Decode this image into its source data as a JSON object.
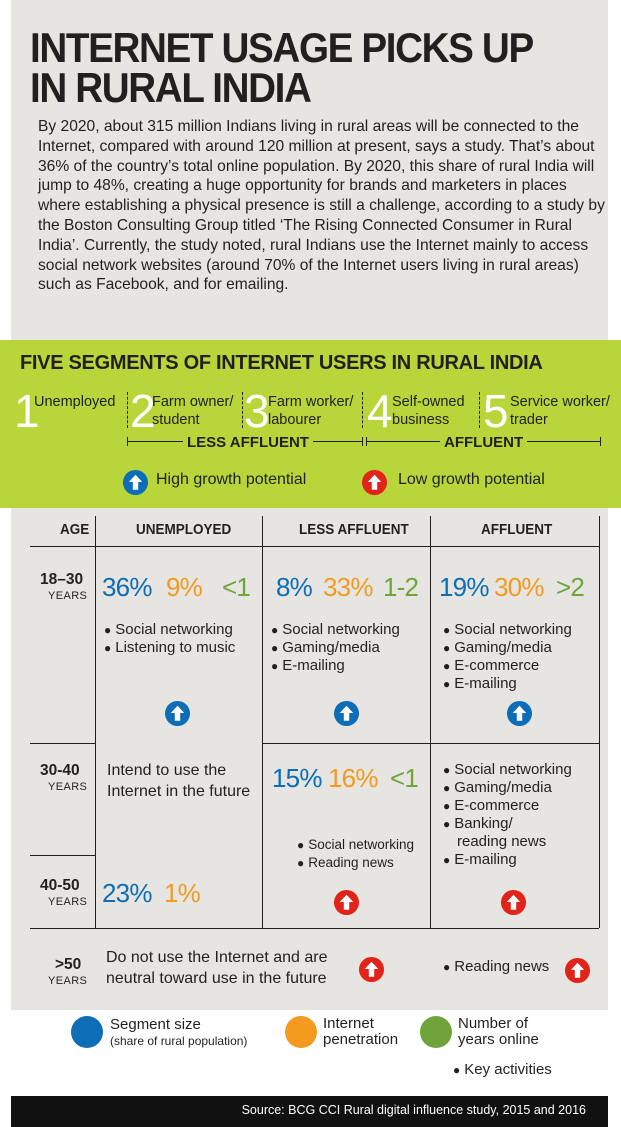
{
  "title_line1": "INTERNET USAGE PICKS UP",
  "title_line2": "IN RURAL INDIA",
  "intro": "By 2020, about 315 million Indians living in rural areas will be connected to the Internet, compared with around 120 million at present, says a study. That’s about 36% of the country’s total online population. By 2020, this share of rural India will jump to 48%, creating a huge opportunity for brands and marketers in places where establishing a physical presence is still a challenge, according to a study by the Boston Consulting Group titled ‘The Rising Connected Consumer in Rural India’. Currently, the study noted, rural Indians use the Internet mainly to access social network websites (around 70% of the Internet users living in rural areas) such as Facebook, and for emailing.",
  "segments": {
    "title": "FIVE SEGMENTS OF INTERNET USERS IN RURAL INDIA",
    "items": [
      {
        "number": "1",
        "label": "Unemployed"
      },
      {
        "number": "2",
        "label": "Farm owner/ student"
      },
      {
        "number": "3",
        "label": "Farm worker/ labourer"
      },
      {
        "number": "4",
        "label": "Self-owned business"
      },
      {
        "number": "5",
        "label": "Service worker/ trader"
      }
    ],
    "less_affluent": "LESS AFFLUENT",
    "affluent": "AFFLUENT",
    "high_growth": "High growth potential",
    "low_growth": "Low growth potential"
  },
  "colors": {
    "segment_size": "#0d6db6",
    "internet_penetration": "#f39a1f",
    "years_online": "#6ea43a",
    "high_growth": "#0d6db6",
    "low_growth": "#e2231a",
    "panel_green": "#b8d53a",
    "panel_grey": "#e6e5e1"
  },
  "table": {
    "headers": {
      "age": "AGE",
      "unemployed": "UNEMPLOYED",
      "less_affluent": "LESS AFFLUENT",
      "affluent": "AFFLUENT"
    },
    "years_word": "YEARS",
    "ages": [
      "18–30",
      "30-40",
      "40-50",
      ">50"
    ],
    "unemployed_note": "Intend to use the Internet in the future",
    "over50_note": "Do not use the Internet and are neutral toward use in the future",
    "activities": {
      "social": "Social networking",
      "music": "Listening to music",
      "gaming": "Gaming/media",
      "emailing": "E-mailing",
      "ecommerce": "E-commerce",
      "banking_1": "Banking/",
      "banking_2": "reading news",
      "reading": "Reading news"
    }
  },
  "chart_data": {
    "type": "table",
    "series_definitions": [
      "Segment size (share of rural population)",
      "Internet penetration",
      "Number of years online"
    ],
    "rows": [
      {
        "age": "18–30",
        "unemployed": {
          "segment_size": "36%",
          "penetration": "9%",
          "years_online": "<1",
          "activities": [
            "Social networking",
            "Listening to music"
          ],
          "growth": "high"
        },
        "less_affluent": {
          "segment_size": "8%",
          "penetration": "33%",
          "years_online": "1-2",
          "activities": [
            "Social networking",
            "Gaming/media",
            "E-mailing"
          ],
          "growth": "high"
        },
        "affluent": {
          "segment_size": "19%",
          "penetration": "30%",
          "years_online": ">2",
          "activities": [
            "Social networking",
            "Gaming/media",
            "E-commerce",
            "E-mailing"
          ],
          "growth": "high"
        }
      },
      {
        "age": "30-40",
        "unemployed": {
          "note": "Intend to use the Internet in the future"
        },
        "less_affluent": {
          "segment_size": "15%",
          "penetration": "16%",
          "years_online": "<1",
          "activities": [
            "Social networking",
            "Reading news"
          ],
          "growth": "low"
        },
        "affluent": {
          "activities": [
            "Social networking",
            "Gaming/media",
            "E-commerce",
            "Banking/ reading news",
            "E-mailing"
          ],
          "growth": "low"
        }
      },
      {
        "age": "40-50",
        "unemployed": {
          "segment_size": "23%",
          "penetration": "1%"
        }
      },
      {
        "age": ">50",
        "all": {
          "note": "Do not use the Internet and are neutral toward use in the future",
          "growth": "low"
        },
        "affluent": {
          "activities": [
            "Reading news"
          ],
          "growth": "low"
        }
      }
    ]
  },
  "values": {
    "r1_unemp": [
      "36%",
      "9%",
      "<1"
    ],
    "r1_less": [
      "8%",
      "33%",
      "1-2"
    ],
    "r1_aff": [
      "19%",
      "30%",
      ">2"
    ],
    "r2_less": [
      "15%",
      "16%",
      "<1"
    ],
    "r3_unemp": [
      "23%",
      "1%"
    ]
  },
  "legend": {
    "segment_size": "Segment size",
    "segment_size_sub": "(share of rural population)",
    "penetration_1": "Internet",
    "penetration_2": "penetration",
    "years_1": "Number of",
    "years_2": "years online",
    "key_activities": "Key activities"
  },
  "source": "Source: BCG CCI Rural digital influence study, 2015 and 2016"
}
